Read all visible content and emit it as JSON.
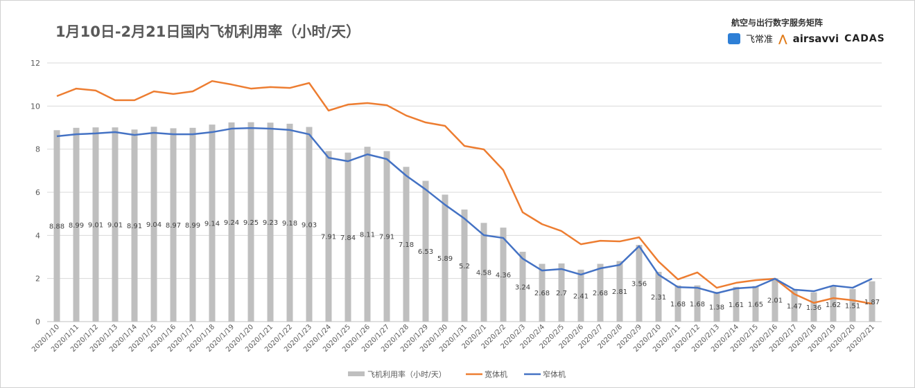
{
  "header": {
    "title": "1月10日-2月21日国内飞机利用率（小时/天）",
    "brand_tagline": "航空与出行数字服务矩阵",
    "logos": [
      "飞常准",
      "airsavvi",
      "CADAS"
    ]
  },
  "colors": {
    "bar": "#bfbfbf",
    "wide": "#ed7d31",
    "narrow": "#4472c4",
    "grid": "#d9d9d9"
  },
  "chart_data": {
    "type": "bar+line",
    "title": "1月10日-2月21日国内飞机利用率（小时/天）",
    "xlabel": "",
    "ylabel": "",
    "ylim": [
      0,
      12
    ],
    "yticks": [
      0,
      2,
      4,
      6,
      8,
      10,
      12
    ],
    "grid": true,
    "legend_placement": "bottom",
    "categories": [
      "2020/1/10",
      "2020/1/11",
      "2020/1/12",
      "2020/1/13",
      "2020/1/14",
      "2020/1/15",
      "2020/1/16",
      "2020/1/17",
      "2020/1/18",
      "2020/1/19",
      "2020/1/20",
      "2020/1/21",
      "2020/1/22",
      "2020/1/23",
      "2020/1/24",
      "2020/1/25",
      "2020/1/26",
      "2020/1/27",
      "2020/1/28",
      "2020/1/29",
      "2020/1/30",
      "2020/1/31",
      "2020/2/1",
      "2020/2/2",
      "2020/2/3",
      "2020/2/4",
      "2020/2/5",
      "2020/2/6",
      "2020/2/7",
      "2020/2/8",
      "2020/2/9",
      "2020/2/10",
      "2020/2/11",
      "2020/2/12",
      "2020/2/13",
      "2020/2/14",
      "2020/2/15",
      "2020/2/16",
      "2020/2/17",
      "2020/2/18",
      "2020/2/19",
      "2020/2/20",
      "2020/2/21"
    ],
    "series": [
      {
        "name": "飞机利用率（小时/天）",
        "type": "bar",
        "labels": true,
        "values": [
          8.88,
          8.99,
          9.01,
          9.01,
          8.91,
          9.04,
          8.97,
          8.99,
          9.14,
          9.24,
          9.25,
          9.23,
          9.18,
          9.03,
          7.91,
          7.84,
          8.11,
          7.91,
          7.18,
          6.53,
          5.89,
          5.2,
          4.58,
          4.36,
          3.24,
          2.68,
          2.7,
          2.41,
          2.68,
          2.81,
          3.56,
          2.31,
          1.68,
          1.68,
          1.38,
          1.61,
          1.65,
          2.01,
          1.47,
          1.36,
          1.62,
          1.51,
          1.87
        ]
      },
      {
        "name": "宽体机",
        "type": "line",
        "values": [
          10.46,
          10.81,
          10.72,
          10.27,
          10.27,
          10.68,
          10.56,
          10.68,
          11.16,
          11.0,
          10.81,
          10.88,
          10.84,
          11.07,
          9.79,
          10.07,
          10.14,
          10.04,
          9.56,
          9.24,
          9.08,
          8.15,
          7.99,
          7.03,
          5.07,
          4.52,
          4.2,
          3.59,
          3.75,
          3.72,
          3.91,
          2.79,
          1.96,
          2.28,
          1.57,
          1.8,
          1.92,
          1.99,
          1.28,
          0.87,
          1.09,
          0.99,
          0.83
        ]
      },
      {
        "name": "窄体机",
        "type": "line",
        "values": [
          8.6,
          8.69,
          8.73,
          8.79,
          8.66,
          8.76,
          8.69,
          8.69,
          8.79,
          8.95,
          8.98,
          8.95,
          8.89,
          8.69,
          7.6,
          7.44,
          7.76,
          7.54,
          6.77,
          6.13,
          5.42,
          4.78,
          4.01,
          3.88,
          2.92,
          2.37,
          2.44,
          2.18,
          2.47,
          2.63,
          3.5,
          2.18,
          1.6,
          1.57,
          1.32,
          1.54,
          1.6,
          1.99,
          1.48,
          1.41,
          1.67,
          1.57,
          1.99
        ]
      }
    ]
  }
}
